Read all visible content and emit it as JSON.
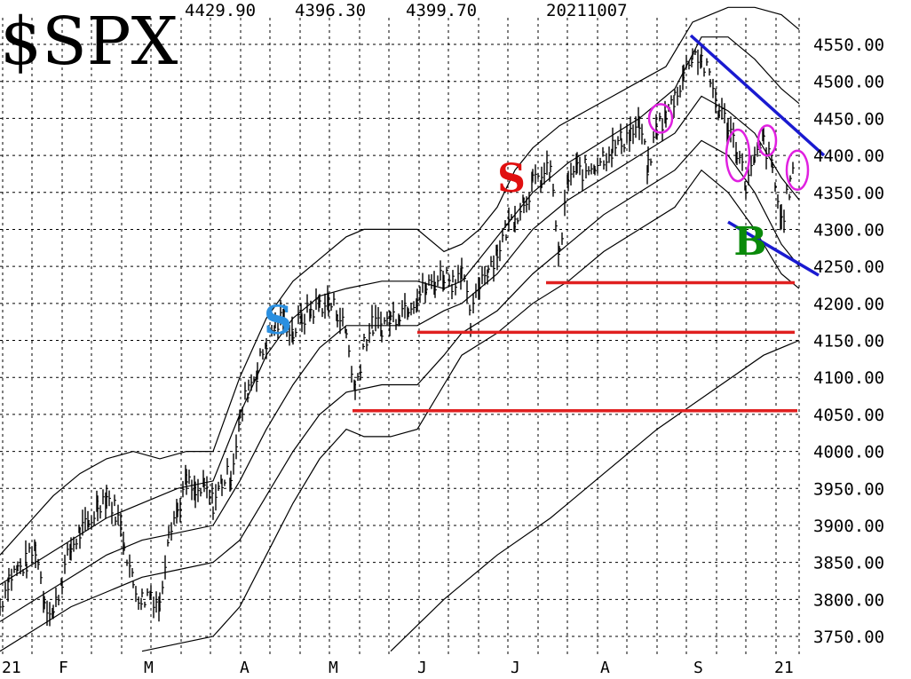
{
  "header": {
    "symbol": "$SPX",
    "high": "4429.90",
    "low": "4396.30",
    "close": "4399.70",
    "date": "20211007"
  },
  "chart_data": {
    "type": "line",
    "subtype": "daily price bars with envelope bands and moving average",
    "title": "$SPX",
    "ylim": [
      3730,
      4610
    ],
    "yticks": [
      "4550.00",
      "4500.00",
      "4450.00",
      "4400.00",
      "4350.00",
      "4300.00",
      "4250.00",
      "4200.00",
      "4150.00",
      "4100.00",
      "4050.00",
      "4000.00",
      "3950.00",
      "3900.00",
      "3850.00",
      "3800.00",
      "3750.00"
    ],
    "x_labels": [
      "21",
      "F",
      "M",
      "A",
      "M",
      "J",
      "J",
      "A",
      "S",
      "21"
    ],
    "grid": true,
    "price_series": [
      [
        0,
        3790
      ],
      [
        10,
        3830
      ],
      [
        20,
        3840
      ],
      [
        30,
        3850
      ],
      [
        40,
        3870
      ],
      [
        50,
        3800
      ],
      [
        60,
        3780
      ],
      [
        70,
        3830
      ],
      [
        80,
        3870
      ],
      [
        90,
        3890
      ],
      [
        100,
        3900
      ],
      [
        110,
        3930
      ],
      [
        120,
        3940
      ],
      [
        130,
        3920
      ],
      [
        140,
        3880
      ],
      [
        150,
        3820
      ],
      [
        160,
        3800
      ],
      [
        170,
        3810
      ],
      [
        180,
        3790
      ],
      [
        190,
        3900
      ],
      [
        200,
        3920
      ],
      [
        210,
        3960
      ],
      [
        220,
        3940
      ],
      [
        230,
        3950
      ],
      [
        240,
        3930
      ],
      [
        250,
        3960
      ],
      [
        260,
        3970
      ],
      [
        270,
        4040
      ],
      [
        280,
        4090
      ],
      [
        290,
        4110
      ],
      [
        300,
        4150
      ],
      [
        310,
        4170
      ],
      [
        320,
        4180
      ],
      [
        330,
        4160
      ],
      [
        340,
        4180
      ],
      [
        350,
        4190
      ],
      [
        360,
        4200
      ],
      [
        370,
        4200
      ],
      [
        380,
        4190
      ],
      [
        390,
        4160
      ],
      [
        400,
        4080
      ],
      [
        410,
        4150
      ],
      [
        420,
        4170
      ],
      [
        430,
        4170
      ],
      [
        440,
        4180
      ],
      [
        450,
        4190
      ],
      [
        460,
        4200
      ],
      [
        470,
        4210
      ],
      [
        480,
        4220
      ],
      [
        490,
        4230
      ],
      [
        500,
        4240
      ],
      [
        510,
        4230
      ],
      [
        520,
        4250
      ],
      [
        530,
        4170
      ],
      [
        540,
        4230
      ],
      [
        550,
        4250
      ],
      [
        560,
        4270
      ],
      [
        570,
        4300
      ],
      [
        580,
        4320
      ],
      [
        590,
        4340
      ],
      [
        600,
        4360
      ],
      [
        610,
        4370
      ],
      [
        620,
        4380
      ],
      [
        630,
        4260
      ],
      [
        640,
        4370
      ],
      [
        650,
        4380
      ],
      [
        660,
        4380
      ],
      [
        670,
        4390
      ],
      [
        680,
        4400
      ],
      [
        690,
        4410
      ],
      [
        700,
        4420
      ],
      [
        710,
        4430
      ],
      [
        720,
        4440
      ],
      [
        730,
        4380
      ],
      [
        740,
        4440
      ],
      [
        750,
        4450
      ],
      [
        760,
        4480
      ],
      [
        770,
        4510
      ],
      [
        780,
        4540
      ],
      [
        790,
        4530
      ],
      [
        800,
        4500
      ],
      [
        810,
        4460
      ],
      [
        820,
        4440
      ],
      [
        830,
        4410
      ],
      [
        840,
        4360
      ],
      [
        850,
        4390
      ],
      [
        860,
        4420
      ],
      [
        870,
        4380
      ],
      [
        880,
        4310
      ],
      [
        890,
        4360
      ],
      [
        895,
        4400
      ]
    ],
    "upper_band": [
      [
        0,
        3860
      ],
      [
        30,
        3900
      ],
      [
        60,
        3940
      ],
      [
        90,
        3970
      ],
      [
        120,
        3990
      ],
      [
        150,
        4000
      ],
      [
        180,
        3990
      ],
      [
        210,
        4000
      ],
      [
        240,
        4000
      ],
      [
        270,
        4100
      ],
      [
        300,
        4180
      ],
      [
        330,
        4230
      ],
      [
        360,
        4260
      ],
      [
        390,
        4290
      ],
      [
        410,
        4300
      ],
      [
        440,
        4300
      ],
      [
        470,
        4300
      ],
      [
        500,
        4270
      ],
      [
        520,
        4280
      ],
      [
        540,
        4300
      ],
      [
        560,
        4330
      ],
      [
        580,
        4380
      ],
      [
        600,
        4410
      ],
      [
        630,
        4440
      ],
      [
        660,
        4460
      ],
      [
        690,
        4480
      ],
      [
        720,
        4500
      ],
      [
        750,
        4520
      ],
      [
        780,
        4580
      ],
      [
        800,
        4590
      ],
      [
        820,
        4600
      ],
      [
        850,
        4600
      ],
      [
        880,
        4590
      ],
      [
        900,
        4570
      ]
    ],
    "inner_upper_band": [
      [
        0,
        3820
      ],
      [
        40,
        3850
      ],
      [
        80,
        3880
      ],
      [
        120,
        3910
      ],
      [
        160,
        3930
      ],
      [
        200,
        3950
      ],
      [
        240,
        3960
      ],
      [
        270,
        4050
      ],
      [
        300,
        4130
      ],
      [
        330,
        4180
      ],
      [
        360,
        4210
      ],
      [
        390,
        4220
      ],
      [
        430,
        4230
      ],
      [
        470,
        4230
      ],
      [
        500,
        4220
      ],
      [
        520,
        4230
      ],
      [
        560,
        4290
      ],
      [
        600,
        4350
      ],
      [
        640,
        4390
      ],
      [
        680,
        4420
      ],
      [
        720,
        4450
      ],
      [
        760,
        4490
      ],
      [
        790,
        4560
      ],
      [
        820,
        4560
      ],
      [
        850,
        4530
      ],
      [
        880,
        4490
      ],
      [
        900,
        4470
      ]
    ],
    "middle_line": [
      [
        0,
        3770
      ],
      [
        40,
        3800
      ],
      [
        80,
        3830
      ],
      [
        120,
        3860
      ],
      [
        160,
        3880
      ],
      [
        200,
        3890
      ],
      [
        240,
        3900
      ],
      [
        270,
        3960
      ],
      [
        300,
        4030
      ],
      [
        330,
        4090
      ],
      [
        360,
        4140
      ],
      [
        390,
        4170
      ],
      [
        430,
        4170
      ],
      [
        470,
        4170
      ],
      [
        500,
        4190
      ],
      [
        520,
        4200
      ],
      [
        560,
        4240
      ],
      [
        600,
        4300
      ],
      [
        640,
        4340
      ],
      [
        680,
        4370
      ],
      [
        720,
        4400
      ],
      [
        760,
        4430
      ],
      [
        790,
        4480
      ],
      [
        820,
        4460
      ],
      [
        850,
        4430
      ],
      [
        880,
        4370
      ],
      [
        900,
        4340
      ]
    ],
    "inner_lower_band": [
      [
        0,
        3730
      ],
      [
        40,
        3760
      ],
      [
        80,
        3790
      ],
      [
        120,
        3810
      ],
      [
        160,
        3830
      ],
      [
        200,
        3840
      ],
      [
        240,
        3850
      ],
      [
        270,
        3880
      ],
      [
        300,
        3940
      ],
      [
        330,
        4000
      ],
      [
        360,
        4050
      ],
      [
        390,
        4080
      ],
      [
        430,
        4090
      ],
      [
        470,
        4090
      ],
      [
        500,
        4130
      ],
      [
        520,
        4160
      ],
      [
        560,
        4190
      ],
      [
        600,
        4240
      ],
      [
        640,
        4280
      ],
      [
        680,
        4320
      ],
      [
        720,
        4350
      ],
      [
        760,
        4380
      ],
      [
        790,
        4420
      ],
      [
        820,
        4400
      ],
      [
        850,
        4350
      ],
      [
        880,
        4280
      ],
      [
        900,
        4250
      ]
    ],
    "lower_band": [
      [
        160,
        3730
      ],
      [
        200,
        3740
      ],
      [
        240,
        3750
      ],
      [
        270,
        3790
      ],
      [
        300,
        3860
      ],
      [
        330,
        3930
      ],
      [
        360,
        3990
      ],
      [
        390,
        4030
      ],
      [
        410,
        4020
      ],
      [
        440,
        4020
      ],
      [
        470,
        4030
      ],
      [
        500,
        4090
      ],
      [
        520,
        4130
      ],
      [
        560,
        4160
      ],
      [
        600,
        4200
      ],
      [
        640,
        4230
      ],
      [
        680,
        4270
      ],
      [
        720,
        4300
      ],
      [
        760,
        4330
      ],
      [
        790,
        4380
      ],
      [
        820,
        4350
      ],
      [
        850,
        4300
      ],
      [
        880,
        4240
      ],
      [
        900,
        4220
      ]
    ],
    "long_ma": [
      [
        440,
        3730
      ],
      [
        500,
        3800
      ],
      [
        560,
        3860
      ],
      [
        620,
        3910
      ],
      [
        680,
        3970
      ],
      [
        740,
        4030
      ],
      [
        800,
        4080
      ],
      [
        860,
        4130
      ],
      [
        900,
        4150
      ]
    ],
    "support_lines": [
      {
        "from": 615,
        "to": 895,
        "y": 4228,
        "color": "#e02020"
      },
      {
        "from": 470,
        "to": 895,
        "y": 4161,
        "color": "#e02020"
      },
      {
        "from": 397,
        "to": 898,
        "y": 4055,
        "color": "#e02020"
      }
    ],
    "trend_lines": [
      {
        "points": [
          [
            778,
            4562
          ],
          [
            928,
            4400
          ]
        ],
        "color": "#1a1ad0"
      },
      {
        "points": [
          [
            820,
            4310
          ],
          [
            922,
            4238
          ]
        ],
        "color": "#1a1ad0"
      }
    ],
    "signals": [
      {
        "label": "S",
        "x": 313,
        "y": 4178,
        "color": "#2a8fe0"
      },
      {
        "label": "S",
        "x": 576,
        "y": 4370,
        "color": "#e01010"
      },
      {
        "label": "B",
        "x": 845,
        "y": 4285,
        "color": "#0a8a0a"
      }
    ],
    "ellipses": [
      {
        "cx": 744,
        "cy": 4450,
        "rx": 13,
        "ry": 16
      },
      {
        "cx": 831,
        "cy": 4400,
        "rx": 13,
        "ry": 29
      },
      {
        "cx": 864,
        "cy": 4420,
        "rx": 10,
        "ry": 17
      },
      {
        "cx": 898,
        "cy": 4380,
        "rx": 12,
        "ry": 22
      }
    ],
    "colors": {
      "ellipse": "#e020e0",
      "grid": "#000000",
      "price": "#000000",
      "band": "#000000"
    }
  }
}
